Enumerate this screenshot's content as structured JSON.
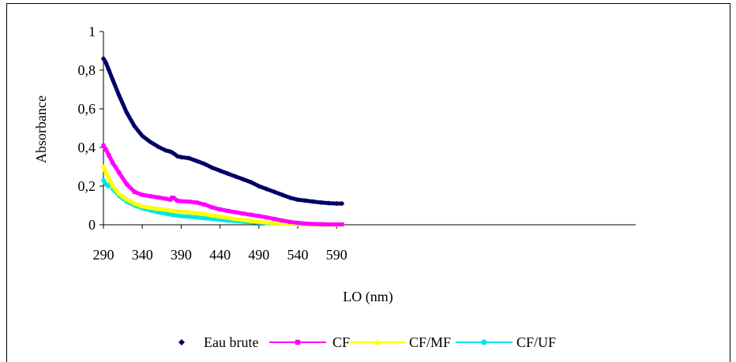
{
  "chart_data": {
    "type": "scatter",
    "title": "",
    "xlabel": "LO (nm)",
    "ylabel": "Absorbance",
    "xlim": [
      290,
      600
    ],
    "ylim": [
      0,
      1
    ],
    "x_ticks": [
      "290",
      "340",
      "390",
      "440",
      "490",
      "540",
      "590"
    ],
    "x_tick_values": [
      290,
      340,
      390,
      440,
      490,
      540,
      590
    ],
    "y_ticks": [
      "0",
      "0,2",
      "0,4",
      "0,6",
      "0,8",
      "1"
    ],
    "y_tick_values": [
      0,
      0.2,
      0.4,
      0.6,
      0.8,
      1
    ],
    "grid": false,
    "legend_position": "bottom",
    "series": [
      {
        "name": "Eau brute",
        "color": "#000066",
        "marker": "diamond",
        "x": [
          290,
          293,
          297,
          302,
          310,
          320,
          330,
          340,
          350,
          360,
          370,
          375,
          378,
          380,
          385,
          390,
          400,
          410,
          420,
          430,
          440,
          450,
          460,
          470,
          480,
          490,
          500,
          510,
          520,
          530,
          540,
          550,
          560,
          570,
          580,
          590,
          597
        ],
        "y": [
          0.86,
          0.84,
          0.8,
          0.75,
          0.67,
          0.58,
          0.51,
          0.46,
          0.43,
          0.405,
          0.385,
          0.38,
          0.375,
          0.37,
          0.355,
          0.35,
          0.345,
          0.33,
          0.315,
          0.295,
          0.28,
          0.265,
          0.25,
          0.235,
          0.22,
          0.2,
          0.185,
          0.17,
          0.155,
          0.14,
          0.13,
          0.125,
          0.12,
          0.115,
          0.112,
          0.11,
          0.11
        ]
      },
      {
        "name": "CF",
        "color": "#ff00ff",
        "marker": "square",
        "x": [
          290,
          293,
          297,
          302,
          310,
          320,
          330,
          340,
          350,
          360,
          370,
          376,
          378,
          380,
          385,
          390,
          400,
          410,
          420,
          430,
          440,
          450,
          460,
          470,
          480,
          490,
          500,
          510,
          520,
          530,
          540,
          550,
          560,
          570,
          580,
          590,
          597
        ],
        "y": [
          0.41,
          0.39,
          0.36,
          0.32,
          0.27,
          0.21,
          0.17,
          0.155,
          0.148,
          0.142,
          0.135,
          0.13,
          0.14,
          0.14,
          0.125,
          0.122,
          0.12,
          0.115,
          0.105,
          0.09,
          0.08,
          0.072,
          0.065,
          0.058,
          0.052,
          0.045,
          0.038,
          0.03,
          0.022,
          0.015,
          0.01,
          0.006,
          0.004,
          0.003,
          0.002,
          0.002,
          0.002
        ]
      },
      {
        "name": "CF/MF",
        "color": "#ffff00",
        "marker": "triangle",
        "x": [
          290,
          293,
          297,
          302,
          310,
          320,
          330,
          340,
          350,
          360,
          370,
          380,
          390,
          400,
          410,
          420,
          430,
          440,
          450,
          460,
          470,
          480,
          490,
          500,
          510,
          520,
          530,
          540,
          550,
          560,
          570,
          580,
          587,
          590,
          597
        ],
        "y": [
          0.3,
          0.27,
          0.24,
          0.2,
          0.16,
          0.13,
          0.11,
          0.095,
          0.088,
          0.082,
          0.078,
          0.072,
          0.068,
          0.065,
          0.06,
          0.055,
          0.048,
          0.042,
          0.036,
          0.03,
          0.025,
          0.02,
          0.016,
          0.012,
          0.009,
          0.007,
          0.005,
          0.004,
          0.003,
          0.002,
          0.001,
          0.001,
          0.001,
          0.0,
          0.0
        ]
      },
      {
        "name": "CF/UF",
        "color": "#00e5e5",
        "marker": "circle",
        "x": [
          290,
          293,
          296,
          299,
          302,
          310,
          320,
          330,
          340,
          350,
          360,
          370,
          380,
          390,
          400,
          410,
          420,
          430,
          440,
          450,
          460,
          470,
          480,
          490,
          500,
          510,
          520,
          530,
          540,
          550,
          555,
          570,
          590,
          597
        ],
        "y": [
          0.23,
          0.21,
          0.2,
          0.215,
          0.185,
          0.15,
          0.12,
          0.1,
          0.085,
          0.075,
          0.065,
          0.058,
          0.05,
          0.045,
          0.042,
          0.038,
          0.034,
          0.03,
          0.026,
          0.022,
          0.019,
          0.016,
          0.013,
          0.011,
          0.009,
          0.007,
          0.006,
          0.005,
          0.004,
          0.003,
          0.002,
          0.001,
          0.001,
          0.001
        ]
      }
    ]
  }
}
